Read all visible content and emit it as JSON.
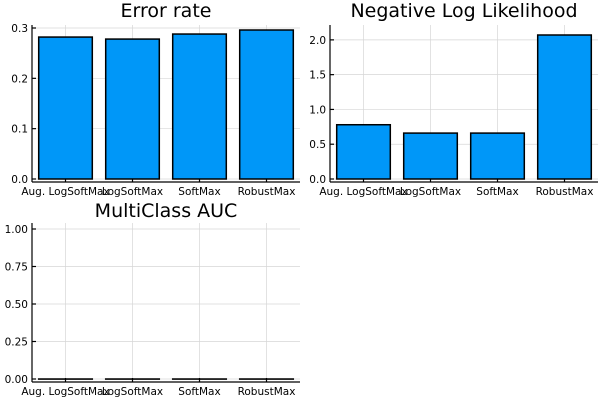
{
  "chart_data": [
    {
      "type": "bar",
      "title": "Error rate",
      "categories": [
        "Aug. LogSoftMax",
        "LogSoftMax",
        "SoftMax",
        "RobustMax"
      ],
      "values": [
        0.282,
        0.278,
        0.288,
        0.296
      ],
      "ylim": [
        0,
        0.3
      ],
      "yticks": [
        "0.0",
        "0.1",
        "0.2",
        "0.3"
      ],
      "ytick_values": [
        0,
        0.1,
        0.2,
        0.3
      ],
      "grid": true,
      "bar_color": "#0097f8"
    },
    {
      "type": "bar",
      "title": "Negative Log Likelihood",
      "categories": [
        "Aug. LogSoftMax",
        "LogSoftMax",
        "SoftMax",
        "RobustMax"
      ],
      "values": [
        0.78,
        0.66,
        0.66,
        2.07
      ],
      "ylim": [
        0,
        2.07
      ],
      "yticks": [
        "0.0",
        "0.5",
        "1.0",
        "1.5",
        "2.0"
      ],
      "ytick_values": [
        0,
        0.5,
        1.0,
        1.5,
        2.0
      ],
      "grid": true,
      "bar_color": "#0097f8"
    },
    {
      "type": "bar",
      "title": "MultiClass AUC",
      "categories": [
        "Aug. LogSoftMax",
        "LogSoftMax",
        "SoftMax",
        "RobustMax"
      ],
      "values": [
        0,
        0,
        0,
        0
      ],
      "ylim": [
        0,
        1.0
      ],
      "yticks": [
        "0.00",
        "0.25",
        "0.50",
        "0.75",
        "1.00"
      ],
      "ytick_values": [
        0,
        0.25,
        0.5,
        0.75,
        1.0
      ],
      "grid": true,
      "bar_color": "#0097f8"
    }
  ]
}
